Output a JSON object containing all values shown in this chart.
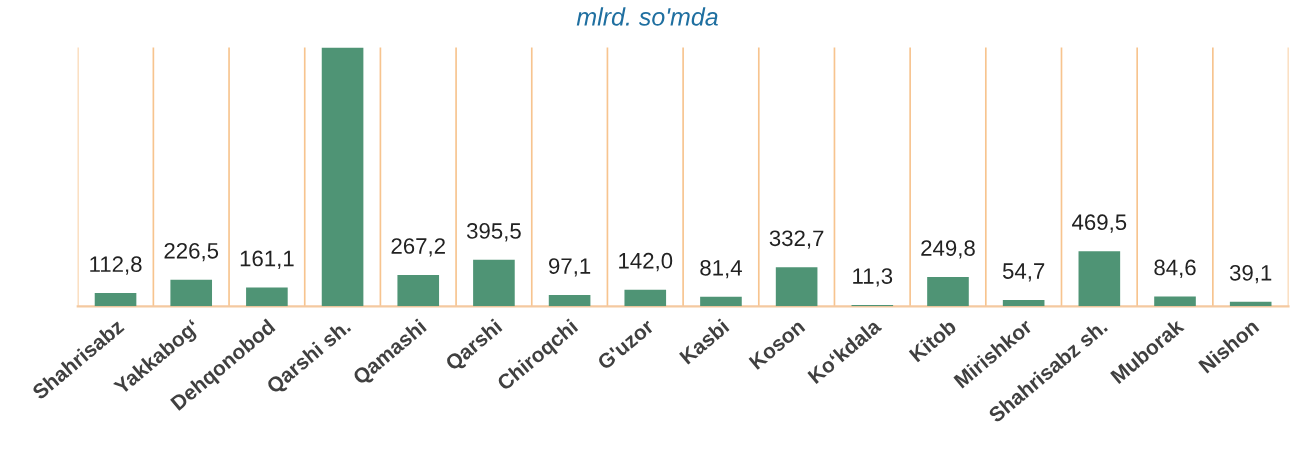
{
  "chart_data": {
    "type": "bar",
    "subtitle": "mlrd. so'mda",
    "categories": [
      "Shahrisabz",
      "Yakkabog‘",
      "Dehqonobod",
      "Qarshi sh.",
      "Qamashi",
      "Qarshi",
      "Chiroqchi",
      "G'uzor",
      "Kasbi",
      "Koson",
      "Ko‘kdala",
      "Kitob",
      "Mirishkor",
      "Shahrisabz sh.",
      "Muborak",
      "Nishon"
    ],
    "values": [
      112.8,
      226.5,
      161.1,
      2200,
      267.2,
      395.5,
      97.1,
      142.0,
      81.4,
      332.7,
      11.3,
      249.8,
      54.7,
      469.5,
      84.6,
      39.1
    ],
    "value_labels": [
      "112,8",
      "226,5",
      "161,1",
      null,
      "267,2",
      "395,5",
      "97,1",
      "142,0",
      "81,4",
      "332,7",
      "11,3",
      "249,8",
      "54,7",
      "469,5",
      "84,6",
      "39,1"
    ],
    "color": "#4f9475",
    "ylim": [
      0,
      2200
    ],
    "tick_labels": "x",
    "grid": "x"
  }
}
